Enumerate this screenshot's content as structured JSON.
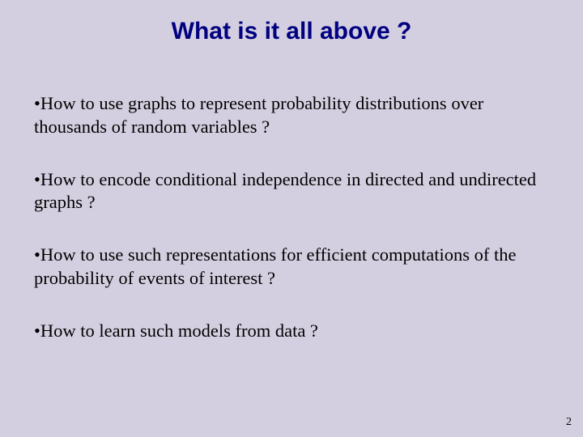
{
  "slide": {
    "background_color": "#d4cfe0",
    "title": {
      "text": "What is it all above ?",
      "color": "#000080",
      "font_family": "Arial",
      "font_weight": "bold",
      "font_size_pt": 22
    },
    "bullets": [
      {
        "mark": "•",
        "text": "How to use graphs to represent probability distributions over thousands of random variables ?"
      },
      {
        "mark": "•",
        "text": "How to encode conditional independence in directed and undirected graphs ?"
      },
      {
        "mark": "•",
        "text": "How to use such representations for efficient computations of the probability of events of interest ?"
      },
      {
        "mark": "•",
        "text": "How to learn such models from data ?"
      }
    ],
    "bullet_style": {
      "font_family": "Times New Roman",
      "font_size_pt": 17,
      "color": "#000000",
      "line_height": 1.28
    },
    "page_number": "2"
  }
}
